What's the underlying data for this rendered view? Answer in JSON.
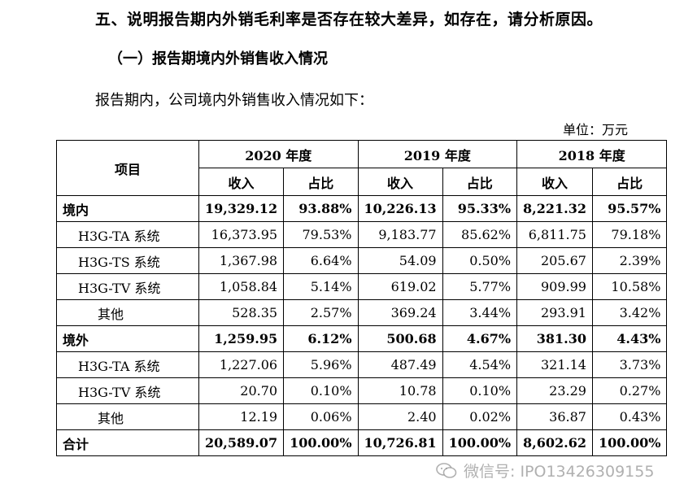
{
  "heading": "五、说明报告期内外销毛利率是否存在较大差异，如存在，请分析原因。",
  "subheading": "（一）报告期境内外销售收入情况",
  "intro": "报告期内，公司境内外销售收入情况如下：",
  "unit": "单位：万元",
  "table": {
    "item_header": "项目",
    "years": [
      "2020 年度",
      "2019 年度",
      "2018 年度"
    ],
    "sub_headers": [
      "收入",
      "占比"
    ],
    "rows": [
      {
        "label": "境内",
        "type": "group",
        "cells": [
          "19,329.12",
          "93.88%",
          "10,226.13",
          "95.33%",
          "8,221.32",
          "95.57%"
        ]
      },
      {
        "label": "H3G-TA 系统",
        "type": "sub",
        "cells": [
          "16,373.95",
          "79.53%",
          "9,183.77",
          "85.62%",
          "6,811.75",
          "79.18%"
        ]
      },
      {
        "label": "H3G-TS 系统",
        "type": "sub",
        "cells": [
          "1,367.98",
          "6.64%",
          "54.09",
          "0.50%",
          "205.67",
          "2.39%"
        ]
      },
      {
        "label": "H3G-TV 系统",
        "type": "sub",
        "cells": [
          "1,058.84",
          "5.14%",
          "619.02",
          "5.77%",
          "909.99",
          "10.58%"
        ]
      },
      {
        "label": "其他",
        "type": "other",
        "cells": [
          "528.35",
          "2.57%",
          "369.24",
          "3.44%",
          "293.91",
          "3.42%"
        ]
      },
      {
        "label": "境外",
        "type": "group",
        "cells": [
          "1,259.95",
          "6.12%",
          "500.68",
          "4.67%",
          "381.30",
          "4.43%"
        ]
      },
      {
        "label": "H3G-TA 系统",
        "type": "sub",
        "cells": [
          "1,227.06",
          "5.96%",
          "487.49",
          "4.54%",
          "321.14",
          "3.73%"
        ]
      },
      {
        "label": "H3G-TV 系统",
        "type": "sub",
        "cells": [
          "20.70",
          "0.10%",
          "10.78",
          "0.10%",
          "23.29",
          "0.27%"
        ]
      },
      {
        "label": "其他",
        "type": "other",
        "cells": [
          "12.19",
          "0.06%",
          "2.40",
          "0.02%",
          "36.87",
          "0.43%"
        ]
      },
      {
        "label": "合计",
        "type": "group",
        "cells": [
          "20,589.07",
          "100.00%",
          "10,726.81",
          "100.00%",
          "8,602.62",
          "100.00%"
        ]
      }
    ]
  },
  "watermark": {
    "icon": "wechat-icon",
    "text": "微信号: IPO13426309155"
  }
}
